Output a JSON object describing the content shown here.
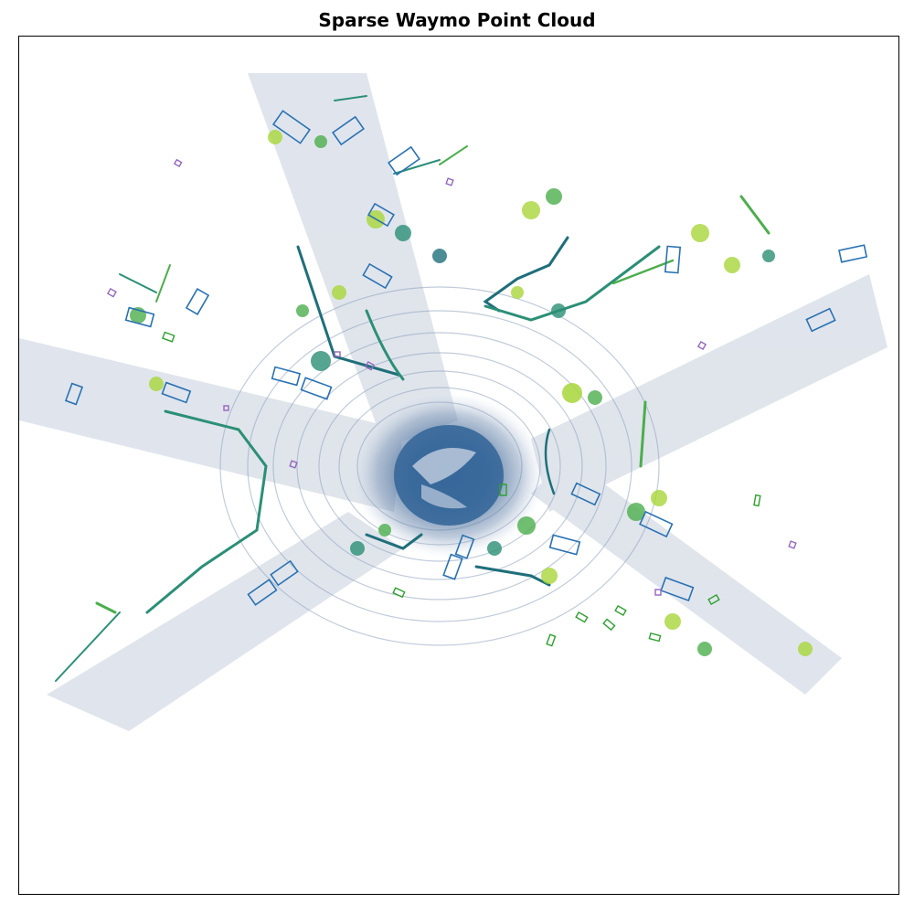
{
  "figure": {
    "title": "Sparse Waymo Point Cloud"
  },
  "legend_colors": {
    "vehicle_box": "#2a72b3",
    "pedestrian_box": "#2ca02c",
    "sign_box": "#9467bd",
    "ground_low": "#3d5a8a",
    "vegetation_high": "#a8d63a"
  },
  "scene": {
    "type": "lidar-bird-eye-view",
    "colormap": "viridis",
    "axes_ticks": "hidden"
  }
}
